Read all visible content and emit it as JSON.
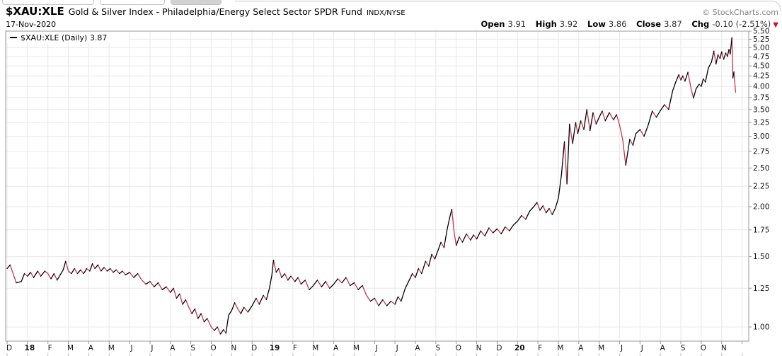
{
  "header": {
    "symbol": "$XAU:XLE",
    "description": "Gold & Silver Index - Philadelphia/Energy Select Sector SPDR Fund",
    "exchange": "INDX/NYSE",
    "date": "17-Nov-2020",
    "copyright": "© StockCharts.com",
    "quote": {
      "open_label": "Open",
      "open": "3.91",
      "high_label": "High",
      "high": "3.92",
      "low_label": "Low",
      "low": "3.86",
      "close_label": "Close",
      "close": "3.87",
      "chg_label": "Chg",
      "chg": "-0.10 (-2.51%)",
      "direction_icon": "▼"
    }
  },
  "legend": {
    "swatch": "—",
    "label": "$XAU:XLE (Daily) 3.87"
  },
  "chart_data": {
    "type": "line",
    "scale": "log",
    "title": "$XAU:XLE daily ratio line, Dec 2017 - 17 Nov 2020",
    "legend_position": "top-left",
    "grid": true,
    "ylim": [
      0.92,
      5.5
    ],
    "y_axis": {
      "side": "right",
      "ticks": [
        "5.50",
        "5.25",
        "5.00",
        "4.75",
        "4.50",
        "4.25",
        "4.00",
        "3.75",
        "3.50",
        "3.25",
        "3.00",
        "2.75",
        "2.50",
        "2.25",
        "2.00",
        "1.75",
        "1.50",
        "1.25",
        "1.00"
      ]
    },
    "x_axis": {
      "labels": [
        "D",
        "18",
        "F",
        "M",
        "A",
        "M",
        "J",
        "J",
        "A",
        "S",
        "O",
        "N",
        "D",
        "19",
        "F",
        "M",
        "A",
        "M",
        "J",
        "J",
        "A",
        "S",
        "O",
        "N",
        "D",
        "20",
        "F",
        "M",
        "A",
        "M",
        "J",
        "J",
        "A",
        "S",
        "O",
        "N"
      ],
      "bold_labels": [
        "18",
        "19",
        "20"
      ]
    },
    "colors": {
      "up": "#000000",
      "down": "#c9334e",
      "grid": "#e8e8e8",
      "frame": "#999999",
      "tick_text": "#111111"
    },
    "series": [
      {
        "name": "$XAU:XLE",
        "last_value": 3.87,
        "points_month_value": [
          [
            0.0,
            1.4
          ],
          [
            0.15,
            1.43
          ],
          [
            0.45,
            1.29
          ],
          [
            0.7,
            1.3
          ],
          [
            0.85,
            1.36
          ],
          [
            1.0,
            1.34
          ],
          [
            1.15,
            1.37
          ],
          [
            1.3,
            1.33
          ],
          [
            1.5,
            1.38
          ],
          [
            1.65,
            1.34
          ],
          [
            1.85,
            1.38
          ],
          [
            2.0,
            1.36
          ],
          [
            2.15,
            1.32
          ],
          [
            2.3,
            1.36
          ],
          [
            2.45,
            1.31
          ],
          [
            2.6,
            1.35
          ],
          [
            2.75,
            1.39
          ],
          [
            2.87,
            1.46
          ],
          [
            3.0,
            1.38
          ],
          [
            3.15,
            1.36
          ],
          [
            3.3,
            1.4
          ],
          [
            3.45,
            1.36
          ],
          [
            3.6,
            1.39
          ],
          [
            3.75,
            1.36
          ],
          [
            3.9,
            1.4
          ],
          [
            4.05,
            1.38
          ],
          [
            4.18,
            1.44
          ],
          [
            4.3,
            1.4
          ],
          [
            4.45,
            1.43
          ],
          [
            4.6,
            1.38
          ],
          [
            4.75,
            1.41
          ],
          [
            4.9,
            1.38
          ],
          [
            5.05,
            1.4
          ],
          [
            5.2,
            1.37
          ],
          [
            5.35,
            1.39
          ],
          [
            5.5,
            1.36
          ],
          [
            5.65,
            1.38
          ],
          [
            5.8,
            1.35
          ],
          [
            6.0,
            1.37
          ],
          [
            6.2,
            1.33
          ],
          [
            6.4,
            1.36
          ],
          [
            6.6,
            1.31
          ],
          [
            6.8,
            1.28
          ],
          [
            7.0,
            1.3
          ],
          [
            7.2,
            1.26
          ],
          [
            7.4,
            1.29
          ],
          [
            7.6,
            1.24
          ],
          [
            7.8,
            1.26
          ],
          [
            8.0,
            1.22
          ],
          [
            8.15,
            1.25
          ],
          [
            8.3,
            1.18
          ],
          [
            8.45,
            1.21
          ],
          [
            8.6,
            1.14
          ],
          [
            8.75,
            1.17
          ],
          [
            8.9,
            1.12
          ],
          [
            9.05,
            1.08
          ],
          [
            9.2,
            1.11
          ],
          [
            9.35,
            1.05
          ],
          [
            9.5,
            1.08
          ],
          [
            9.65,
            1.03
          ],
          [
            9.8,
            1.05
          ],
          [
            10.0,
            1.0
          ],
          [
            10.15,
            0.98
          ],
          [
            10.3,
            1.0
          ],
          [
            10.45,
            0.96
          ],
          [
            10.6,
            0.985
          ],
          [
            10.72,
            0.965
          ],
          [
            10.85,
            1.07
          ],
          [
            11.0,
            1.1
          ],
          [
            11.15,
            1.15
          ],
          [
            11.3,
            1.11
          ],
          [
            11.45,
            1.08
          ],
          [
            11.6,
            1.12
          ],
          [
            11.8,
            1.09
          ],
          [
            12.0,
            1.13
          ],
          [
            12.2,
            1.18
          ],
          [
            12.35,
            1.14
          ],
          [
            12.55,
            1.2
          ],
          [
            12.7,
            1.17
          ],
          [
            12.85,
            1.25
          ],
          [
            12.97,
            1.35
          ],
          [
            13.05,
            1.47
          ],
          [
            13.18,
            1.37
          ],
          [
            13.3,
            1.4
          ],
          [
            13.45,
            1.33
          ],
          [
            13.6,
            1.36
          ],
          [
            13.75,
            1.31
          ],
          [
            13.9,
            1.34
          ],
          [
            14.1,
            1.3
          ],
          [
            14.25,
            1.33
          ],
          [
            14.4,
            1.28
          ],
          [
            14.6,
            1.31
          ],
          [
            14.8,
            1.24
          ],
          [
            15.0,
            1.27
          ],
          [
            15.2,
            1.31
          ],
          [
            15.4,
            1.26
          ],
          [
            15.6,
            1.3
          ],
          [
            15.8,
            1.25
          ],
          [
            16.0,
            1.28
          ],
          [
            16.2,
            1.32
          ],
          [
            16.4,
            1.29
          ],
          [
            16.6,
            1.33
          ],
          [
            16.8,
            1.27
          ],
          [
            17.0,
            1.29
          ],
          [
            17.2,
            1.24
          ],
          [
            17.4,
            1.27
          ],
          [
            17.6,
            1.2
          ],
          [
            17.8,
            1.16
          ],
          [
            18.0,
            1.18
          ],
          [
            18.2,
            1.13
          ],
          [
            18.4,
            1.17
          ],
          [
            18.6,
            1.13
          ],
          [
            18.8,
            1.16
          ],
          [
            19.0,
            1.14
          ],
          [
            19.15,
            1.19
          ],
          [
            19.3,
            1.16
          ],
          [
            19.5,
            1.25
          ],
          [
            19.7,
            1.31
          ],
          [
            19.85,
            1.36
          ],
          [
            20.0,
            1.33
          ],
          [
            20.15,
            1.4
          ],
          [
            20.3,
            1.36
          ],
          [
            20.5,
            1.46
          ],
          [
            20.65,
            1.42
          ],
          [
            20.8,
            1.52
          ],
          [
            20.95,
            1.48
          ],
          [
            21.1,
            1.55
          ],
          [
            21.25,
            1.63
          ],
          [
            21.4,
            1.58
          ],
          [
            21.55,
            1.75
          ],
          [
            21.68,
            1.88
          ],
          [
            21.78,
            1.97
          ],
          [
            21.9,
            1.72
          ],
          [
            22.0,
            1.6
          ],
          [
            22.15,
            1.68
          ],
          [
            22.3,
            1.63
          ],
          [
            22.5,
            1.71
          ],
          [
            22.7,
            1.65
          ],
          [
            22.85,
            1.7
          ],
          [
            23.0,
            1.66
          ],
          [
            23.2,
            1.74
          ],
          [
            23.4,
            1.69
          ],
          [
            23.6,
            1.77
          ],
          [
            23.8,
            1.72
          ],
          [
            24.0,
            1.76
          ],
          [
            24.2,
            1.71
          ],
          [
            24.4,
            1.78
          ],
          [
            24.6,
            1.74
          ],
          [
            24.8,
            1.8
          ],
          [
            25.0,
            1.84
          ],
          [
            25.2,
            1.9
          ],
          [
            25.4,
            1.86
          ],
          [
            25.6,
            1.95
          ],
          [
            25.8,
            2.0
          ],
          [
            25.95,
            2.05
          ],
          [
            26.1,
            1.96
          ],
          [
            26.25,
            2.01
          ],
          [
            26.4,
            1.93
          ],
          [
            26.55,
            1.98
          ],
          [
            26.7,
            1.91
          ],
          [
            26.85,
            1.98
          ],
          [
            27.0,
            2.1
          ],
          [
            27.15,
            2.4
          ],
          [
            27.3,
            2.91
          ],
          [
            27.42,
            2.28
          ],
          [
            27.55,
            3.22
          ],
          [
            27.7,
            2.88
          ],
          [
            27.85,
            3.25
          ],
          [
            27.95,
            3.05
          ],
          [
            28.1,
            3.28
          ],
          [
            28.25,
            3.12
          ],
          [
            28.4,
            3.5
          ],
          [
            28.55,
            3.1
          ],
          [
            28.7,
            3.44
          ],
          [
            28.85,
            3.22
          ],
          [
            29.0,
            3.35
          ],
          [
            29.15,
            3.47
          ],
          [
            29.3,
            3.28
          ],
          [
            29.5,
            3.44
          ],
          [
            29.7,
            3.3
          ],
          [
            29.85,
            3.4
          ],
          [
            30.0,
            3.2
          ],
          [
            30.15,
            2.95
          ],
          [
            30.3,
            2.54
          ],
          [
            30.5,
            2.95
          ],
          [
            30.65,
            2.85
          ],
          [
            30.8,
            3.05
          ],
          [
            31.0,
            3.12
          ],
          [
            31.2,
            3.0
          ],
          [
            31.4,
            3.2
          ],
          [
            31.6,
            3.47
          ],
          [
            31.8,
            3.35
          ],
          [
            32.0,
            3.48
          ],
          [
            32.2,
            3.6
          ],
          [
            32.4,
            3.5
          ],
          [
            32.6,
            3.9
          ],
          [
            32.75,
            4.1
          ],
          [
            32.9,
            4.28
          ],
          [
            33.0,
            4.15
          ],
          [
            33.1,
            4.25
          ],
          [
            33.2,
            4.12
          ],
          [
            33.35,
            4.34
          ],
          [
            33.5,
            3.95
          ],
          [
            33.62,
            3.74
          ],
          [
            33.75,
            3.95
          ],
          [
            33.9,
            4.05
          ],
          [
            34.0,
            4.0
          ],
          [
            34.1,
            4.18
          ],
          [
            34.2,
            4.1
          ],
          [
            34.35,
            4.45
          ],
          [
            34.5,
            4.6
          ],
          [
            34.62,
            4.9
          ],
          [
            34.72,
            4.55
          ],
          [
            34.82,
            4.8
          ],
          [
            34.92,
            4.7
          ],
          [
            35.0,
            4.88
          ],
          [
            35.1,
            4.68
          ],
          [
            35.2,
            4.85
          ],
          [
            35.28,
            4.75
          ],
          [
            35.36,
            4.95
          ],
          [
            35.42,
            4.82
          ],
          [
            35.5,
            5.3
          ],
          [
            35.55,
            4.2
          ],
          [
            35.6,
            4.35
          ],
          [
            35.68,
            3.87
          ]
        ]
      }
    ]
  }
}
